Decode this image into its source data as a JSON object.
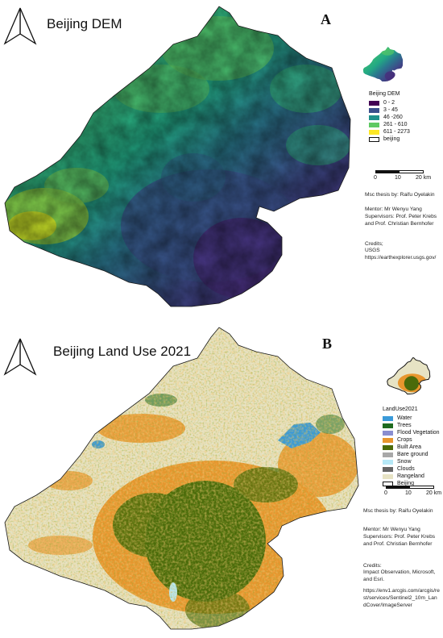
{
  "map_a": {
    "title": "Beijing DEM",
    "letter": "A",
    "legend": {
      "title": "Beijing DEM",
      "items": [
        {
          "label": "0 - 2",
          "color": "#440154"
        },
        {
          "label": "3 - 45",
          "color": "#3b4f8c"
        },
        {
          "label": "46 -260",
          "color": "#21918c"
        },
        {
          "label": "261 - 610",
          "color": "#5ec962"
        },
        {
          "label": "611 - 2273",
          "color": "#fde725"
        },
        {
          "label": "beijing",
          "color": "outline"
        }
      ]
    },
    "scale": {
      "zero": "0",
      "mid": "10",
      "end": "20 km"
    },
    "credits": {
      "thesis": "Msc thesis by: Raifu Oyelakin",
      "mentor": "Mentor: Mr Wenyu Yang",
      "supervisors": "Supervisors: Prof. Peter Krebs and Prof. Christian Bernhofer",
      "credits_label": "Credits;",
      "source": "USGS",
      "url": "https://earthexplorer.usgs.gov/"
    }
  },
  "map_b": {
    "title": "Beijing Land Use 2021",
    "letter": "B",
    "legend": {
      "title": "LandUse2021",
      "items": [
        {
          "label": "Water",
          "color": "#3a9ad9"
        },
        {
          "label": "Trees",
          "color": "#1f6b1f"
        },
        {
          "label": "Flood Vegetation",
          "color": "#8a8ed0"
        },
        {
          "label": "Crops",
          "color": "#e8962e"
        },
        {
          "label": "Built Area",
          "color": "#4a6a0a"
        },
        {
          "label": "Bare ground",
          "color": "#a8a8a8"
        },
        {
          "label": "Snow",
          "color": "#b6e8f6"
        },
        {
          "label": "Clouds",
          "color": "#666666"
        },
        {
          "label": "Rangeland",
          "color": "#e7e3c4"
        },
        {
          "label": "Beijing",
          "color": "outline"
        }
      ]
    },
    "scale": {
      "zero": "0",
      "mid": "10",
      "end": "20 km"
    },
    "credits": {
      "thesis": "Msc thesis by: Raifu Oyelakin",
      "mentor": "Mentor: Mr Wenyu Yang",
      "supervisors": "Supervisors: Prof. Peter Krebs and Prof. Christian Bernhofer",
      "credits_label": "Credits:",
      "source": "Impact Observation, Microsoft, and Esri.",
      "url": "https://env1.arcgis.com/arcgis/rest/services/Sentinel2_10m_LandCover/ImageServer"
    }
  }
}
